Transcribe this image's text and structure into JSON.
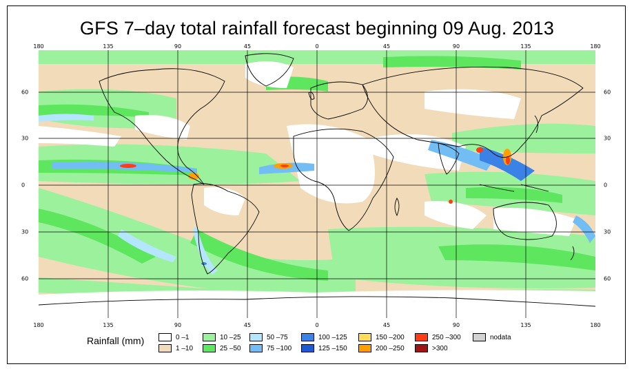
{
  "title": "GFS 7–day total rainfall forecast beginning 09 Aug. 2013",
  "lon_ticks": [
    "180",
    "135",
    "90",
    "45",
    "0",
    "45",
    "90",
    "135",
    "180"
  ],
  "lat_ticks": [
    "60",
    "30",
    "0",
    "30",
    "60"
  ],
  "legend": {
    "label": "Rainfall (mm)",
    "items": [
      {
        "text": "0 –1",
        "color": "#ffffff"
      },
      {
        "text": "1 –10",
        "color": "#f2dbb9"
      },
      {
        "text": "10 –25",
        "color": "#9cf29c"
      },
      {
        "text": "25 –50",
        "color": "#5ee65e"
      },
      {
        "text": "50 –75",
        "color": "#b5e6ff"
      },
      {
        "text": "75 –100",
        "color": "#73bdf5"
      },
      {
        "text": "100 –125",
        "color": "#3a82e6"
      },
      {
        "text": "125 –150",
        "color": "#1e5ad2"
      },
      {
        "text": "150 –200",
        "color": "#ffdc5a"
      },
      {
        "text": "200 –250",
        "color": "#ffa000"
      },
      {
        "text": "250 –300",
        "color": "#ff3c14"
      },
      {
        "text": ">300",
        "color": "#a01414"
      },
      {
        "text": "nodata",
        "color": "#d2d2d2"
      }
    ]
  }
}
